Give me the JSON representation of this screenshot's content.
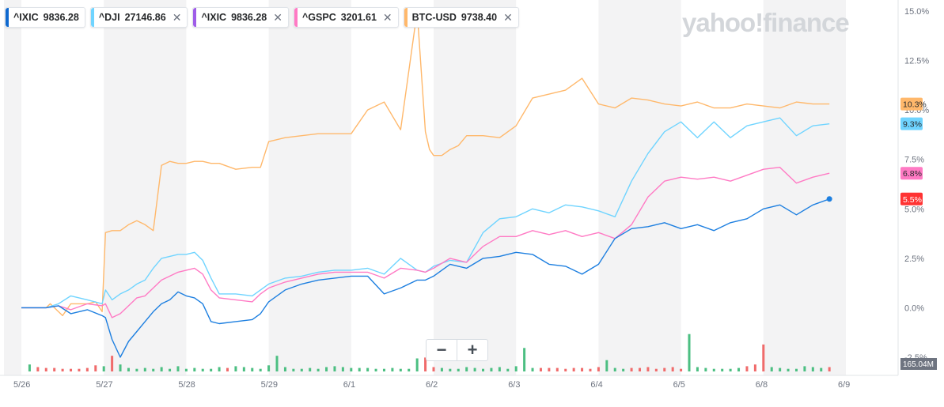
{
  "legend": [
    {
      "symbol": "^IXIC",
      "price": "9836.28",
      "color": "#0f69cf",
      "closable": false
    },
    {
      "symbol": "^DJI",
      "price": "27146.86",
      "color": "#6fd4ff",
      "closable": true
    },
    {
      "symbol": "^IXIC",
      "price": "9836.28",
      "color": "#9f5de8",
      "closable": true
    },
    {
      "symbol": "^GSPC",
      "price": "3201.61",
      "color": "#ff7ac4",
      "closable": true
    },
    {
      "symbol": "BTC-USD",
      "price": "9738.40",
      "color": "#ffb86b",
      "closable": true
    }
  ],
  "close_glyph": "✕",
  "logo": "yahoo!finance",
  "zoom": {
    "minus": "−",
    "plus": "+"
  },
  "chart_data": {
    "type": "line",
    "y_unit": "%",
    "ylim": [
      -2.5,
      15.0
    ],
    "yticks": [
      "15.0%",
      "12.5%",
      "10.0%",
      "7.5%",
      "5.0%",
      "2.5%",
      "0.0%",
      "-2.5%"
    ],
    "xticks": [
      "5/26",
      "5/27",
      "5/28",
      "5/29",
      "6/1",
      "6/2",
      "6/3",
      "6/4",
      "6/5",
      "6/8",
      "6/9"
    ],
    "volume_label": "165.04M",
    "end_labels": [
      {
        "series": "BTC-USD",
        "text": "10.3%",
        "color": "#ffb86b"
      },
      {
        "series": "^DJI",
        "text": "9.3%",
        "color": "#6fd4ff"
      },
      {
        "series": "^GSPC",
        "text": "6.8%",
        "color": "#ff7ac4"
      },
      {
        "series": "^IXIC",
        "text": "5.5%",
        "color": "#ff3333"
      }
    ],
    "series": [
      {
        "name": "BTC-USD",
        "color": "#ffb86b",
        "x": [
          0,
          0.3,
          0.35,
          0.5,
          0.6,
          0.8,
          0.9,
          0.98,
          1.02,
          1.1,
          1.2,
          1.3,
          1.4,
          1.5,
          1.6,
          1.7,
          1.8,
          1.9,
          2.0,
          2.1,
          2.2,
          2.3,
          2.4,
          2.6,
          2.8,
          2.9,
          3.0,
          3.2,
          3.4,
          3.6,
          3.8,
          4.0,
          4.2,
          4.4,
          4.6,
          4.8,
          4.9,
          4.95,
          5.0,
          5.1,
          5.2,
          5.3,
          5.4,
          5.6,
          5.8,
          6.0,
          6.2,
          6.4,
          6.6,
          6.8,
          7.0,
          7.2,
          7.4,
          7.6,
          7.8,
          8.0,
          8.2,
          8.4,
          8.6,
          8.8,
          9.0,
          9.2,
          9.4,
          9.6,
          9.8
        ],
        "y": [
          0,
          0,
          0.2,
          -0.4,
          0.2,
          0.2,
          0.3,
          -0.2,
          3.8,
          3.9,
          3.9,
          4.2,
          4.4,
          4.2,
          3.9,
          7.2,
          7.4,
          7.3,
          7.3,
          7.4,
          7.4,
          7.3,
          7.3,
          7.0,
          7.1,
          7.1,
          8.4,
          8.6,
          8.7,
          8.8,
          8.8,
          8.8,
          10.0,
          10.4,
          9.0,
          15.0,
          8.9,
          8.0,
          7.7,
          7.7,
          8.0,
          8.2,
          8.7,
          8.7,
          8.6,
          9.2,
          10.6,
          10.8,
          11.0,
          11.6,
          10.3,
          10.1,
          10.6,
          10.5,
          10.3,
          10.2,
          10.4,
          10.1,
          10.1,
          10.3,
          10.2,
          10.1,
          10.4,
          10.3,
          10.3
        ]
      },
      {
        "name": "^DJI",
        "color": "#6fd4ff",
        "x": [
          0,
          0.3,
          0.45,
          0.6,
          0.8,
          0.98,
          1.02,
          1.1,
          1.2,
          1.3,
          1.4,
          1.5,
          1.6,
          1.7,
          1.8,
          1.9,
          2.0,
          2.1,
          2.2,
          2.3,
          2.4,
          2.6,
          2.8,
          2.9,
          3.0,
          3.2,
          3.4,
          3.6,
          3.8,
          4.0,
          4.2,
          4.4,
          4.6,
          4.8,
          4.9,
          5.0,
          5.2,
          5.4,
          5.6,
          5.8,
          6.0,
          6.2,
          6.4,
          6.6,
          6.8,
          7.0,
          7.2,
          7.4,
          7.6,
          7.8,
          8.0,
          8.2,
          8.4,
          8.6,
          8.8,
          9.0,
          9.2,
          9.4,
          9.6,
          9.8
        ],
        "y": [
          0,
          0,
          0.2,
          0.6,
          0.4,
          0.2,
          0.9,
          0.4,
          0.7,
          0.9,
          1.2,
          1.4,
          2.0,
          2.5,
          2.6,
          2.7,
          2.7,
          2.8,
          2.4,
          1.5,
          0.7,
          0.7,
          0.6,
          0.9,
          1.2,
          1.5,
          1.6,
          1.8,
          1.9,
          1.9,
          2.0,
          1.7,
          2.5,
          1.9,
          1.8,
          2.1,
          2.4,
          2.3,
          3.8,
          4.5,
          4.6,
          5.0,
          4.8,
          5.2,
          5.1,
          4.9,
          4.6,
          6.4,
          7.8,
          8.9,
          9.4,
          8.6,
          9.4,
          8.6,
          9.2,
          9.4,
          9.6,
          8.7,
          9.2,
          9.3
        ]
      },
      {
        "name": "^GSPC",
        "color": "#ff7ac4",
        "x": [
          0,
          0.3,
          0.45,
          0.6,
          0.8,
          0.98,
          1.02,
          1.1,
          1.2,
          1.3,
          1.4,
          1.5,
          1.6,
          1.7,
          1.8,
          1.9,
          2.0,
          2.1,
          2.2,
          2.3,
          2.4,
          2.6,
          2.8,
          2.9,
          3.0,
          3.2,
          3.4,
          3.6,
          3.8,
          4.0,
          4.2,
          4.4,
          4.6,
          4.8,
          4.9,
          5.0,
          5.2,
          5.4,
          5.6,
          5.8,
          6.0,
          6.2,
          6.4,
          6.6,
          6.8,
          7.0,
          7.2,
          7.4,
          7.6,
          7.8,
          8.0,
          8.2,
          8.4,
          8.6,
          8.8,
          9.0,
          9.2,
          9.4,
          9.6,
          9.8
        ],
        "y": [
          0,
          0,
          0.1,
          -0.1,
          0.2,
          0.1,
          0.2,
          -0.5,
          -0.3,
          0.1,
          0.5,
          0.6,
          1.0,
          1.4,
          1.6,
          1.8,
          1.9,
          2.0,
          1.7,
          0.9,
          0.5,
          0.4,
          0.3,
          0.7,
          1.0,
          1.3,
          1.5,
          1.7,
          1.8,
          1.8,
          1.8,
          1.5,
          2.0,
          1.9,
          1.8,
          2.0,
          2.5,
          2.3,
          3.1,
          3.6,
          3.6,
          3.9,
          3.7,
          3.9,
          3.6,
          3.8,
          3.5,
          4.2,
          5.6,
          6.4,
          6.6,
          6.5,
          6.6,
          6.4,
          6.7,
          7.0,
          7.1,
          6.3,
          6.6,
          6.8
        ]
      },
      {
        "name": "^IXIC",
        "color": "#1d7fe0",
        "x": [
          0,
          0.3,
          0.45,
          0.6,
          0.8,
          0.98,
          1.02,
          1.1,
          1.2,
          1.3,
          1.4,
          1.5,
          1.6,
          1.7,
          1.8,
          1.9,
          2.0,
          2.1,
          2.2,
          2.3,
          2.4,
          2.6,
          2.8,
          2.9,
          3.0,
          3.2,
          3.4,
          3.6,
          3.8,
          4.0,
          4.2,
          4.4,
          4.6,
          4.8,
          4.9,
          5.0,
          5.2,
          5.4,
          5.6,
          5.8,
          6.0,
          6.2,
          6.4,
          6.6,
          6.8,
          7.0,
          7.2,
          7.4,
          7.6,
          7.8,
          8.0,
          8.2,
          8.4,
          8.6,
          8.8,
          9.0,
          9.2,
          9.4,
          9.6,
          9.8
        ],
        "y": [
          0,
          0,
          0.1,
          -0.3,
          -0.1,
          -0.4,
          -0.5,
          -1.6,
          -2.5,
          -1.7,
          -1.2,
          -0.7,
          -0.2,
          0.2,
          0.4,
          0.8,
          0.6,
          0.5,
          0.2,
          -0.7,
          -0.8,
          -0.7,
          -0.6,
          -0.3,
          0.3,
          0.9,
          1.2,
          1.4,
          1.5,
          1.6,
          1.6,
          0.7,
          1.0,
          1.4,
          1.4,
          1.6,
          2.2,
          2.0,
          2.5,
          2.6,
          2.8,
          2.7,
          2.2,
          2.1,
          1.7,
          2.2,
          3.5,
          4.0,
          4.1,
          4.3,
          4.0,
          4.2,
          3.9,
          4.3,
          4.5,
          5.0,
          5.2,
          4.7,
          5.2,
          5.5
        ]
      }
    ],
    "volume": {
      "x": [
        0.1,
        0.2,
        0.3,
        0.4,
        0.5,
        0.6,
        0.7,
        0.8,
        0.9,
        1.0,
        1.1,
        1.2,
        1.3,
        1.4,
        1.5,
        1.6,
        1.7,
        1.8,
        1.9,
        2.0,
        2.1,
        2.2,
        2.3,
        2.4,
        2.5,
        2.6,
        2.7,
        2.8,
        2.9,
        3.0,
        3.1,
        3.2,
        3.3,
        3.4,
        3.5,
        3.6,
        3.7,
        3.8,
        3.9,
        4.0,
        4.1,
        4.2,
        4.3,
        4.4,
        4.5,
        4.6,
        4.7,
        4.8,
        4.9,
        5.0,
        5.1,
        5.2,
        5.3,
        5.4,
        5.5,
        5.6,
        5.7,
        5.8,
        5.9,
        6.0,
        6.1,
        6.2,
        6.3,
        6.4,
        6.5,
        6.6,
        6.7,
        6.8,
        6.9,
        7.0,
        7.1,
        7.2,
        7.3,
        7.4,
        7.5,
        7.6,
        7.7,
        7.8,
        7.9,
        8.0,
        8.1,
        8.2,
        8.3,
        8.4,
        8.5,
        8.6,
        8.7,
        8.8,
        8.9,
        9.0,
        9.1,
        9.2,
        9.3,
        9.4,
        9.5,
        9.6,
        9.7,
        9.8
      ],
      "v": [
        0.08,
        0.05,
        0.04,
        0.04,
        0.03,
        0.03,
        0.03,
        0.04,
        0.07,
        0.06,
        0.18,
        0.08,
        0.04,
        0.03,
        0.04,
        0.03,
        0.05,
        0.03,
        0.06,
        0.03,
        0.04,
        0.03,
        0.03,
        0.05,
        0.04,
        0.06,
        0.05,
        0.04,
        0.03,
        0.07,
        0.18,
        0.05,
        0.03,
        0.03,
        0.04,
        0.03,
        0.05,
        0.06,
        0.05,
        0.04,
        0.04,
        0.04,
        0.03,
        0.03,
        0.04,
        0.03,
        0.03,
        0.15,
        0.16,
        0.05,
        0.04,
        0.03,
        0.03,
        0.05,
        0.04,
        0.03,
        0.04,
        0.05,
        0.03,
        0.06,
        0.27,
        0.04,
        0.04,
        0.04,
        0.04,
        0.03,
        0.04,
        0.04,
        0.03,
        0.05,
        0.13,
        0.04,
        0.03,
        0.04,
        0.04,
        0.05,
        0.03,
        0.04,
        0.05,
        0.03,
        0.43,
        0.05,
        0.04,
        0.03,
        0.03,
        0.03,
        0.04,
        0.06,
        0.08,
        0.31,
        0.05,
        0.04,
        0.03,
        0.03,
        0.06,
        0.05,
        0.04,
        0.05
      ],
      "up": [
        true,
        false,
        false,
        false,
        false,
        false,
        false,
        false,
        false,
        true,
        false,
        true,
        true,
        true,
        true,
        true,
        true,
        true,
        true,
        true,
        true,
        true,
        true,
        true,
        false,
        true,
        true,
        true,
        true,
        true,
        true,
        true,
        true,
        true,
        true,
        true,
        true,
        true,
        true,
        true,
        true,
        true,
        true,
        true,
        true,
        true,
        true,
        true,
        false,
        false,
        true,
        true,
        true,
        true,
        true,
        true,
        true,
        true,
        true,
        true,
        true,
        true,
        false,
        false,
        false,
        false,
        false,
        false,
        false,
        false,
        true,
        true,
        true,
        false,
        false,
        false,
        false,
        false,
        false,
        false,
        true,
        true,
        true,
        true,
        true,
        true,
        true,
        false,
        false,
        false,
        true,
        true,
        true,
        true,
        true,
        true,
        true,
        false
      ]
    }
  }
}
